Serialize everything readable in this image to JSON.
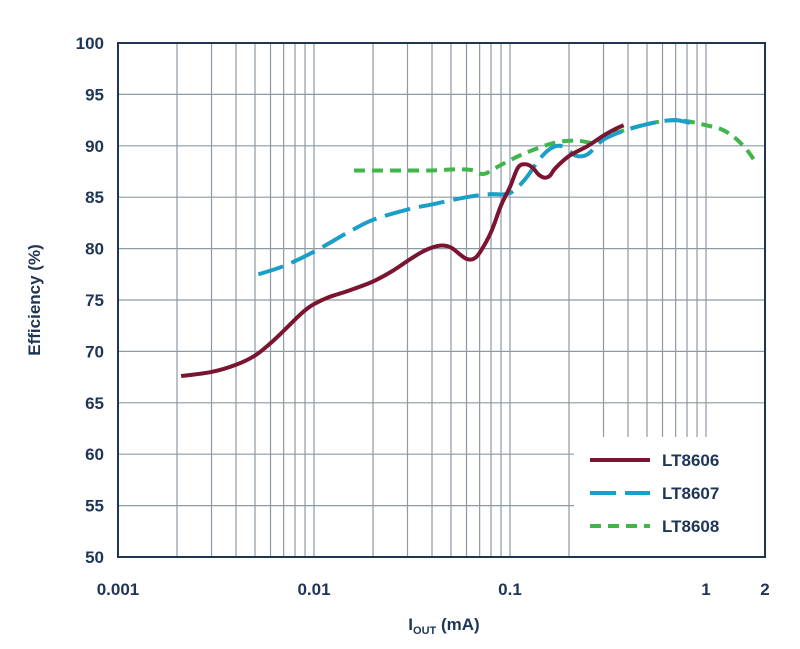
{
  "chart_data": {
    "type": "line",
    "xscale": "log",
    "xlim": [
      0.001,
      2
    ],
    "ylim": [
      50,
      100
    ],
    "grid": true,
    "xlabel": {
      "main": "I",
      "sub": "OUT",
      "unit": " (mA)"
    },
    "ylabel": "Efficiency (%)",
    "x_ticks": [
      {
        "value": 0.001,
        "label": "0.001"
      },
      {
        "value": 0.01,
        "label": "0.01"
      },
      {
        "value": 0.1,
        "label": "0.1"
      },
      {
        "value": 1,
        "label": "1"
      },
      {
        "value": 2,
        "label": "2"
      }
    ],
    "y_ticks": [
      {
        "value": 50,
        "label": "50"
      },
      {
        "value": 55,
        "label": "55"
      },
      {
        "value": 60,
        "label": "60"
      },
      {
        "value": 65,
        "label": "65"
      },
      {
        "value": 70,
        "label": "70"
      },
      {
        "value": 75,
        "label": "75"
      },
      {
        "value": 80,
        "label": "80"
      },
      {
        "value": 85,
        "label": "85"
      },
      {
        "value": 90,
        "label": "90"
      },
      {
        "value": 95,
        "label": "95"
      },
      {
        "value": 100,
        "label": "100"
      }
    ],
    "legend_position": "bottom-right",
    "series": [
      {
        "name": "LT8606",
        "color": "#7b1430",
        "style": "solid",
        "points": [
          [
            0.0021,
            67.6
          ],
          [
            0.003,
            68.0
          ],
          [
            0.004,
            68.7
          ],
          [
            0.005,
            69.6
          ],
          [
            0.006,
            70.8
          ],
          [
            0.007,
            72.0
          ],
          [
            0.008,
            73.1
          ],
          [
            0.009,
            74.0
          ],
          [
            0.01,
            74.6
          ],
          [
            0.012,
            75.3
          ],
          [
            0.015,
            75.9
          ],
          [
            0.02,
            76.8
          ],
          [
            0.025,
            77.8
          ],
          [
            0.03,
            78.8
          ],
          [
            0.035,
            79.6
          ],
          [
            0.04,
            80.1
          ],
          [
            0.045,
            80.3
          ],
          [
            0.05,
            80.1
          ],
          [
            0.055,
            79.5
          ],
          [
            0.06,
            79.0
          ],
          [
            0.065,
            79.0
          ],
          [
            0.07,
            79.6
          ],
          [
            0.08,
            81.6
          ],
          [
            0.09,
            84.2
          ],
          [
            0.1,
            86.0
          ],
          [
            0.11,
            87.9
          ],
          [
            0.12,
            88.2
          ],
          [
            0.13,
            87.9
          ],
          [
            0.14,
            87.2
          ],
          [
            0.15,
            86.9
          ],
          [
            0.16,
            87.1
          ],
          [
            0.17,
            87.8
          ],
          [
            0.2,
            89.0
          ],
          [
            0.25,
            90.0
          ],
          [
            0.3,
            91.0
          ],
          [
            0.35,
            91.7
          ],
          [
            0.38,
            92.0
          ]
        ]
      },
      {
        "name": "LT8607",
        "color": "#1aa0c8",
        "style": "dashed",
        "points": [
          [
            0.0052,
            77.5
          ],
          [
            0.007,
            78.3
          ],
          [
            0.01,
            79.7
          ],
          [
            0.015,
            81.6
          ],
          [
            0.02,
            82.8
          ],
          [
            0.03,
            83.8
          ],
          [
            0.04,
            84.3
          ],
          [
            0.05,
            84.7
          ],
          [
            0.06,
            85.0
          ],
          [
            0.07,
            85.2
          ],
          [
            0.08,
            85.3
          ],
          [
            0.1,
            85.4
          ],
          [
            0.12,
            86.8
          ],
          [
            0.14,
            88.6
          ],
          [
            0.16,
            89.7
          ],
          [
            0.18,
            90.0
          ],
          [
            0.2,
            89.5
          ],
          [
            0.22,
            89.0
          ],
          [
            0.25,
            89.2
          ],
          [
            0.3,
            90.6
          ],
          [
            0.4,
            91.6
          ],
          [
            0.5,
            92.1
          ],
          [
            0.6,
            92.4
          ],
          [
            0.7,
            92.5
          ],
          [
            0.8,
            92.3
          ],
          [
            0.9,
            92.0
          ]
        ]
      },
      {
        "name": "LT8608",
        "color": "#3fb54a",
        "style": "dashed",
        "points": [
          [
            0.016,
            87.6
          ],
          [
            0.02,
            87.6
          ],
          [
            0.03,
            87.6
          ],
          [
            0.04,
            87.6
          ],
          [
            0.05,
            87.7
          ],
          [
            0.06,
            87.7
          ],
          [
            0.065,
            87.6
          ],
          [
            0.07,
            87.3
          ],
          [
            0.075,
            87.3
          ],
          [
            0.08,
            87.6
          ],
          [
            0.1,
            88.6
          ],
          [
            0.12,
            89.3
          ],
          [
            0.15,
            90.0
          ],
          [
            0.18,
            90.4
          ],
          [
            0.22,
            90.5
          ],
          [
            0.27,
            90.3
          ],
          [
            0.3,
            90.9
          ],
          [
            0.4,
            91.6
          ],
          [
            0.5,
            92.1
          ],
          [
            0.6,
            92.4
          ],
          [
            0.7,
            92.5
          ],
          [
            0.8,
            92.4
          ],
          [
            0.9,
            92.2
          ],
          [
            1.0,
            92.0
          ],
          [
            1.2,
            91.6
          ],
          [
            1.4,
            90.8
          ],
          [
            1.6,
            89.7
          ],
          [
            1.75,
            88.7
          ]
        ]
      }
    ]
  }
}
